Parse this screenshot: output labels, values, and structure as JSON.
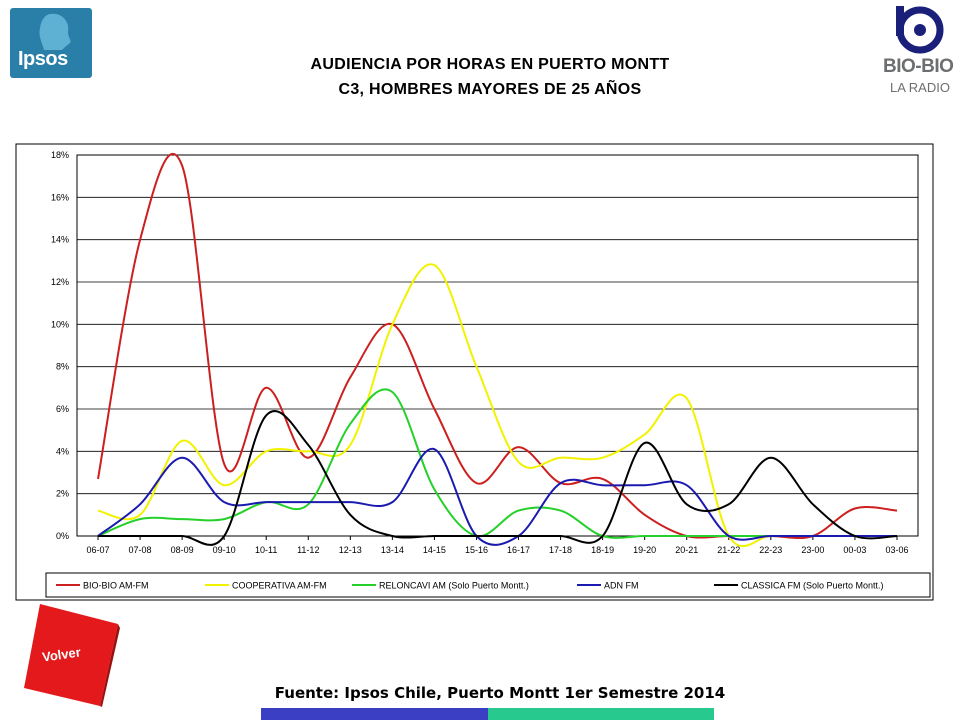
{
  "header": {
    "title_line1": "AUDIENCIA POR HORAS EN PUERTO MONTT",
    "title_line2": "C3, HOMBRES MAYORES DE 25 AÑOS"
  },
  "logos": {
    "left": "Ipsos",
    "right_main": "BIO-BIO",
    "right_sub": "LA RADIO"
  },
  "buttons": {
    "back_label": "Volver"
  },
  "footer": {
    "source": "Fuente: Ipsos Chile, Puerto Montt 1er Semestre 2014"
  },
  "colors": {
    "accent_blue": "#3a3fc4",
    "accent_green": "#27c98e",
    "ipsos_blue": "#2a7fa9",
    "volver_red": "#e3191b"
  },
  "chart_data": {
    "type": "line",
    "categories": [
      "06-07",
      "07-08",
      "08-09",
      "09-10",
      "10-11",
      "11-12",
      "12-13",
      "13-14",
      "14-15",
      "15-16",
      "16-17",
      "17-18",
      "18-19",
      "19-20",
      "20-21",
      "21-22",
      "22-23",
      "23-00",
      "00-03",
      "03-06"
    ],
    "y_ticks": [
      "0%",
      "2%",
      "4%",
      "6%",
      "8%",
      "10%",
      "12%",
      "14%",
      "16%",
      "18%"
    ],
    "ylim": [
      0,
      18
    ],
    "grid": true,
    "legend_position": "bottom",
    "series": [
      {
        "name": "BIO-BIO AM-FM",
        "color": "#cc1f1f",
        "values": [
          2.7,
          14.0,
          17.5,
          3.4,
          7.0,
          3.7,
          7.5,
          10.0,
          6.0,
          2.5,
          4.2,
          2.5,
          2.7,
          1.0,
          0.0,
          0.0,
          0.0,
          0.0,
          1.3,
          1.2
        ]
      },
      {
        "name": "COOPERATIVA AM-FM",
        "color": "#f2f200",
        "values": [
          1.2,
          1.0,
          4.5,
          2.4,
          4.0,
          4.0,
          4.3,
          10.0,
          12.8,
          8.0,
          3.5,
          3.7,
          3.7,
          4.8,
          6.5,
          0.0,
          0.0,
          0.0,
          0.0,
          0.0
        ]
      },
      {
        "name": "RELONCAVI AM (Solo Puerto Montt.)",
        "color": "#26d02a",
        "values": [
          0.0,
          0.8,
          0.8,
          0.8,
          1.6,
          1.5,
          5.3,
          6.8,
          2.2,
          0.0,
          1.2,
          1.2,
          0.0,
          0.0,
          0.0,
          0.0,
          0.0,
          0.0,
          0.0,
          0.0
        ]
      },
      {
        "name": "ADN FM",
        "color": "#1a1ab0",
        "values": [
          0.0,
          1.5,
          3.7,
          1.6,
          1.6,
          1.6,
          1.6,
          1.6,
          4.1,
          0.0,
          0.0,
          2.5,
          2.4,
          2.4,
          2.4,
          0.0,
          0.0,
          0.0,
          0.0,
          0.0
        ]
      },
      {
        "name": "CLASSICA FM  (Solo Puerto Montt.)",
        "color": "#000000",
        "values": [
          0.0,
          0.0,
          0.0,
          0.0,
          5.7,
          4.3,
          1.0,
          0.0,
          0.0,
          0.0,
          0.0,
          0.0,
          0.0,
          4.4,
          1.5,
          1.5,
          3.7,
          1.5,
          0.0,
          0.0
        ]
      }
    ]
  }
}
